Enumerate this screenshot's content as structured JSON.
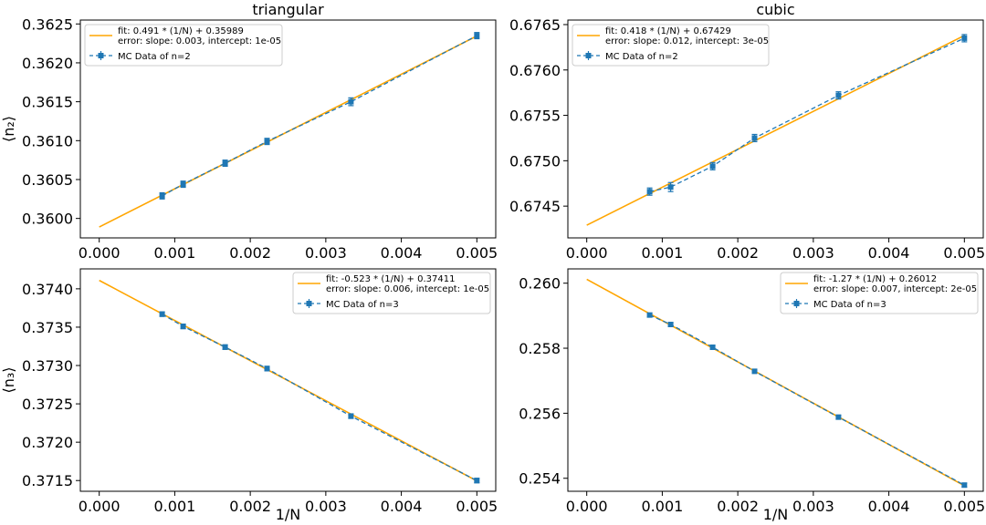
{
  "chart_data": [
    {
      "type": "line",
      "title": "triangular",
      "xlabel": "",
      "ylabel": "⟨n₂⟩",
      "xlim": [
        -0.00025,
        0.00525
      ],
      "ylim": [
        0.35975,
        0.36255
      ],
      "xticks": [
        0.0,
        0.001,
        0.002,
        0.003,
        0.004,
        0.005
      ],
      "xtick_labels": [
        "0.000",
        "0.001",
        "0.002",
        "0.003",
        "0.004",
        "0.005"
      ],
      "yticks": [
        0.36,
        0.3605,
        0.361,
        0.3615,
        0.362,
        0.3625
      ],
      "ytick_labels": [
        "0.3600",
        "0.3605",
        "0.3610",
        "0.3615",
        "0.3620",
        "0.3625"
      ],
      "legend_position": "top-left",
      "fit": {
        "slope": 0.491,
        "intercept": 0.35989
      },
      "fit_label": "fit: 0.491 * (1/N) + 0.35989",
      "error_label": "error: slope: 0.003, intercept: 1e-05",
      "mc_label": "MC Data of n=2",
      "series": [
        {
          "name": "MC Data of n=2",
          "x": [
            0.000833,
            0.001111,
            0.001667,
            0.002222,
            0.003333,
            0.005
          ],
          "y": [
            0.36029,
            0.36044,
            0.36071,
            0.36099,
            0.3615,
            0.36235
          ],
          "err": [
            4e-05,
            4e-05,
            4e-05,
            4e-05,
            5e-05,
            4e-05
          ]
        }
      ]
    },
    {
      "type": "line",
      "title": "cubic",
      "xlabel": "",
      "ylabel": "",
      "xlim": [
        -0.00025,
        0.00525
      ],
      "ylim": [
        0.67415,
        0.67655
      ],
      "xticks": [
        0.0,
        0.001,
        0.002,
        0.003,
        0.004,
        0.005
      ],
      "xtick_labels": [
        "0.000",
        "0.001",
        "0.002",
        "0.003",
        "0.004",
        "0.005"
      ],
      "yticks": [
        0.6745,
        0.675,
        0.6755,
        0.676,
        0.6765
      ],
      "ytick_labels": [
        "0.6745",
        "0.6750",
        "0.6755",
        "0.6760",
        "0.6765"
      ],
      "legend_position": "top-left",
      "fit": {
        "slope": 0.418,
        "intercept": 0.67429
      },
      "fit_label": "fit: 0.418 * (1/N) + 0.67429",
      "error_label": "error: slope: 0.012, intercept: 3e-05",
      "mc_label": "MC Data of n=2",
      "series": [
        {
          "name": "MC Data of n=2",
          "x": [
            0.000833,
            0.001111,
            0.001667,
            0.002222,
            0.003333,
            0.005
          ],
          "y": [
            0.67466,
            0.67471,
            0.67494,
            0.67525,
            0.67572,
            0.67635
          ],
          "err": [
            4e-05,
            5e-05,
            4e-05,
            4e-05,
            4e-05,
            4e-05
          ]
        }
      ]
    },
    {
      "type": "line",
      "title": "",
      "xlabel": "1/N",
      "ylabel": "⟨n₃⟩",
      "xlim": [
        -0.00025,
        0.00525
      ],
      "ylim": [
        0.37136,
        0.37426
      ],
      "xticks": [
        0.0,
        0.001,
        0.002,
        0.003,
        0.004,
        0.005
      ],
      "xtick_labels": [
        "0.000",
        "0.001",
        "0.002",
        "0.003",
        "0.004",
        "0.005"
      ],
      "yticks": [
        0.3715,
        0.372,
        0.3725,
        0.373,
        0.3735,
        0.374
      ],
      "ytick_labels": [
        "0.3715",
        "0.3720",
        "0.3725",
        "0.3730",
        "0.3735",
        "0.3740"
      ],
      "legend_position": "top-right",
      "fit": {
        "slope": -0.523,
        "intercept": 0.37411
      },
      "fit_label": "fit: -0.523 * (1/N) + 0.37411",
      "error_label": "error: slope: 0.006, intercept: 1e-05",
      "mc_label": "MC Data of n=3",
      "series": [
        {
          "name": "MC Data of n=3",
          "x": [
            0.000833,
            0.001111,
            0.001667,
            0.002222,
            0.003333,
            0.005
          ],
          "y": [
            0.37367,
            0.37351,
            0.37324,
            0.37296,
            0.37234,
            0.3715
          ],
          "err": [
            3e-05,
            3e-05,
            3e-05,
            3e-05,
            3e-05,
            3e-05
          ]
        }
      ]
    },
    {
      "type": "line",
      "title": "",
      "xlabel": "1/N",
      "ylabel": "",
      "xlim": [
        -0.00025,
        0.00525
      ],
      "ylim": [
        0.2536,
        0.26044
      ],
      "xticks": [
        0.0,
        0.001,
        0.002,
        0.003,
        0.004,
        0.005
      ],
      "xtick_labels": [
        "0.000",
        "0.001",
        "0.002",
        "0.003",
        "0.004",
        "0.005"
      ],
      "yticks": [
        0.254,
        0.256,
        0.258,
        0.26
      ],
      "ytick_labels": [
        "0.254",
        "0.256",
        "0.258",
        "0.260"
      ],
      "legend_position": "top-right",
      "fit": {
        "slope": -1.27,
        "intercept": 0.26012
      },
      "fit_label": "fit: -1.27 * (1/N) + 0.26012",
      "error_label": "error: slope: 0.007, intercept: 2e-05",
      "mc_label": "MC Data of n=3",
      "series": [
        {
          "name": "MC Data of n=3",
          "x": [
            0.000833,
            0.001111,
            0.001667,
            0.002222,
            0.003333,
            0.005
          ],
          "y": [
            0.25902,
            0.25873,
            0.25803,
            0.25729,
            0.25588,
            0.25379
          ],
          "err": [
            6e-05,
            6e-05,
            6e-05,
            6e-05,
            6e-05,
            6e-05
          ]
        }
      ]
    }
  ],
  "colors": {
    "fit_line": "#ffa500",
    "mc_data": "#1f77b4",
    "axes": "#000000",
    "legend_border": "#cccccc",
    "background": "#ffffff"
  }
}
